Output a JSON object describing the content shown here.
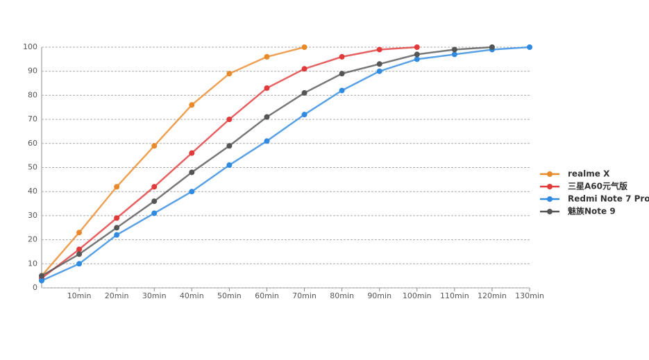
{
  "chart_data": {
    "type": "line",
    "xlim": [
      0,
      130
    ],
    "xticks": [
      {
        "value": 10,
        "label": "10min"
      },
      {
        "value": 20,
        "label": "20min"
      },
      {
        "value": 30,
        "label": "30min"
      },
      {
        "value": 40,
        "label": "40min"
      },
      {
        "value": 50,
        "label": "50min"
      },
      {
        "value": 60,
        "label": "60min"
      },
      {
        "value": 70,
        "label": "70min"
      },
      {
        "value": 80,
        "label": "80min"
      },
      {
        "value": 90,
        "label": "90min"
      },
      {
        "value": 100,
        "label": "100min"
      },
      {
        "value": 110,
        "label": "110min"
      },
      {
        "value": 120,
        "label": "120min"
      },
      {
        "value": 130,
        "label": "130min"
      }
    ],
    "ylim": [
      0,
      100
    ],
    "yticks": [
      0,
      10,
      20,
      30,
      40,
      50,
      60,
      70,
      80,
      90,
      100
    ],
    "grid": true,
    "legend": "right",
    "series": [
      {
        "name": "realme X",
        "color": "#e8892a",
        "x": [
          0,
          10,
          20,
          30,
          40,
          50,
          60,
          70
        ],
        "values": [
          5,
          23,
          42,
          59,
          76,
          89,
          96,
          100
        ]
      },
      {
        "name": "三星A60元气版",
        "color": "#e03a3a",
        "x": [
          0,
          10,
          20,
          30,
          40,
          50,
          60,
          70,
          80,
          90,
          100
        ],
        "values": [
          4,
          16,
          29,
          42,
          56,
          70,
          83,
          91,
          96,
          99,
          100
        ]
      },
      {
        "name": "Redmi Note 7 Pro",
        "color": "#2f8ae0",
        "x": [
          0,
          10,
          20,
          30,
          40,
          50,
          60,
          70,
          80,
          90,
          100,
          110,
          120,
          130
        ],
        "values": [
          3,
          10,
          22,
          31,
          40,
          51,
          61,
          72,
          82,
          90,
          95,
          97,
          99,
          100
        ]
      },
      {
        "name": "魅族Note 9",
        "color": "#555555",
        "x": [
          0,
          10,
          20,
          30,
          40,
          50,
          60,
          70,
          80,
          90,
          100,
          110,
          120
        ],
        "values": [
          5,
          14,
          25,
          36,
          48,
          59,
          71,
          81,
          89,
          93,
          97,
          99,
          100
        ]
      }
    ]
  }
}
